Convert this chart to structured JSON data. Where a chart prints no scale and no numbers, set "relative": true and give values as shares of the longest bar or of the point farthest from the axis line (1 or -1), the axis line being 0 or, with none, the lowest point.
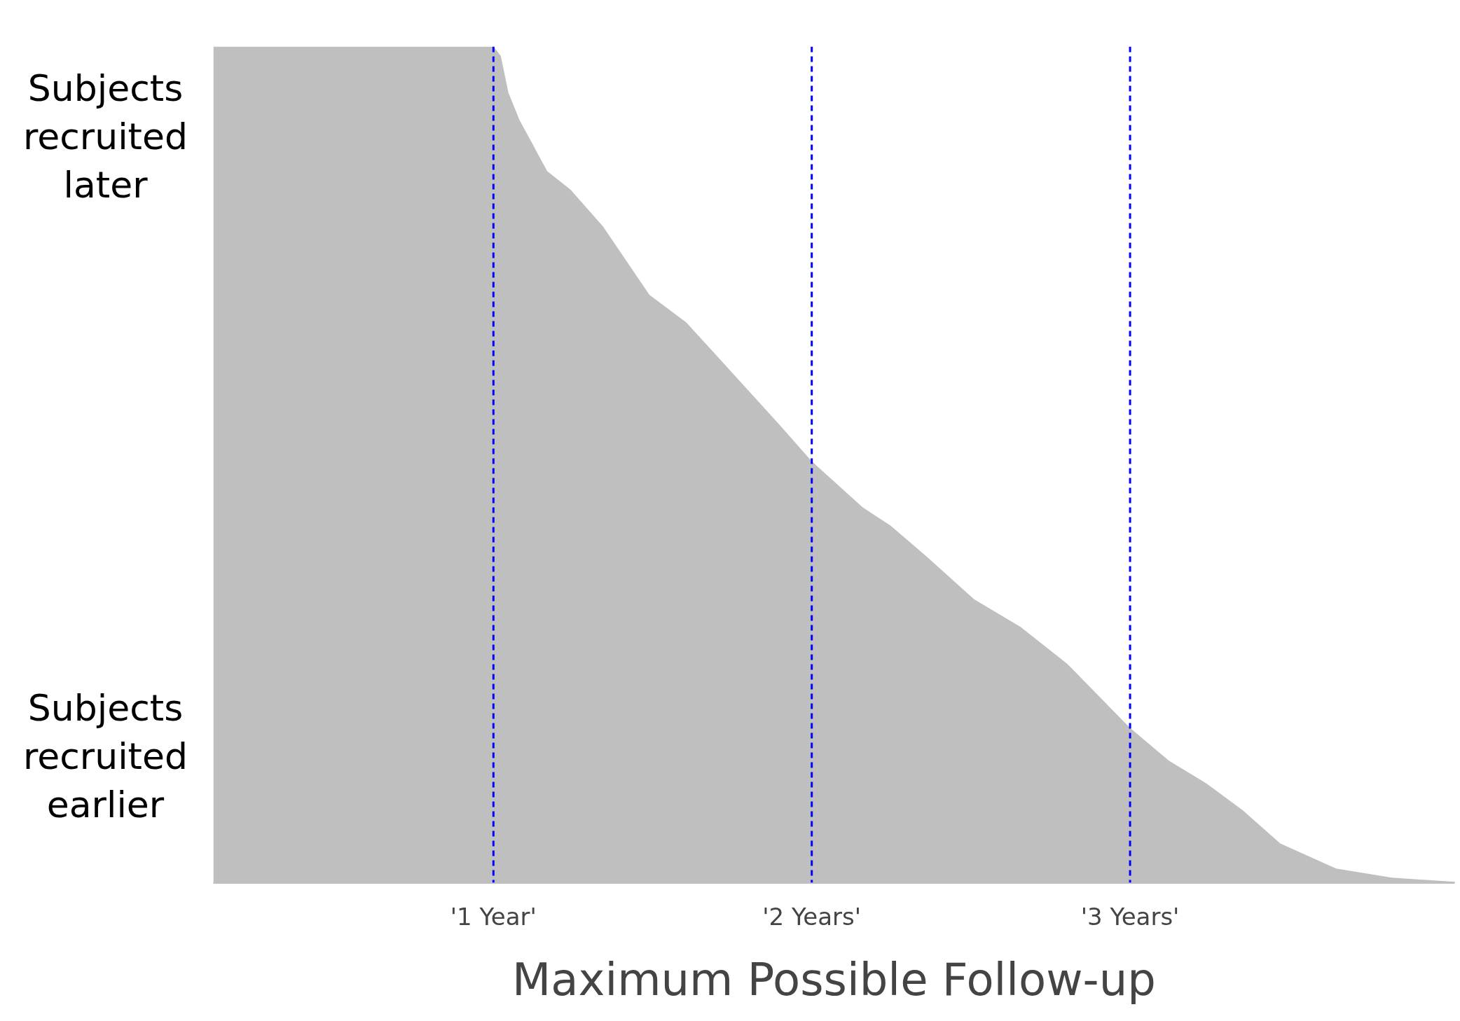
{
  "chart_data": {
    "type": "area",
    "relative": true,
    "xlabel": "Maximum Possible Follow-up",
    "x": [
      0.12,
      1.0,
      1.023,
      1.047,
      1.082,
      1.169,
      1.242,
      1.344,
      1.49,
      1.606,
      1.738,
      1.898,
      2.0,
      2.16,
      2.248,
      2.364,
      2.51,
      2.656,
      2.802,
      3.0,
      3.122,
      3.239,
      3.356,
      3.472,
      3.647,
      3.822,
      4.02
    ],
    "series": [
      {
        "color": "#bfbfbf",
        "values": [
          1,
          1,
          0.989,
          0.945,
          0.912,
          0.851,
          0.829,
          0.785,
          0.703,
          0.67,
          0.615,
          0.548,
          0.504,
          0.449,
          0.427,
          0.389,
          0.339,
          0.306,
          0.262,
          0.185,
          0.146,
          0.119,
          0.086,
          0.047,
          0.017,
          0.006,
          0.001
        ]
      }
    ],
    "xlim": [
      0.12,
      4.02
    ],
    "xticks": [
      {
        "value": 1,
        "label": "'1 Year'"
      },
      {
        "value": 2,
        "label": "'2 Years'"
      },
      {
        "value": 3,
        "label": "'3 Years'"
      }
    ],
    "ref_lines": [
      {
        "axis": "x",
        "value": 1,
        "color": "#0000ff",
        "line_style": "dashed"
      },
      {
        "axis": "x",
        "value": 2,
        "color": "#0000ff",
        "line_style": "dashed"
      },
      {
        "axis": "x",
        "value": 3,
        "color": "#0000ff",
        "line_style": "dashed"
      }
    ],
    "annotations": [
      "Subjects recruited later",
      "Subjects recruited earlier"
    ],
    "grid": false
  }
}
